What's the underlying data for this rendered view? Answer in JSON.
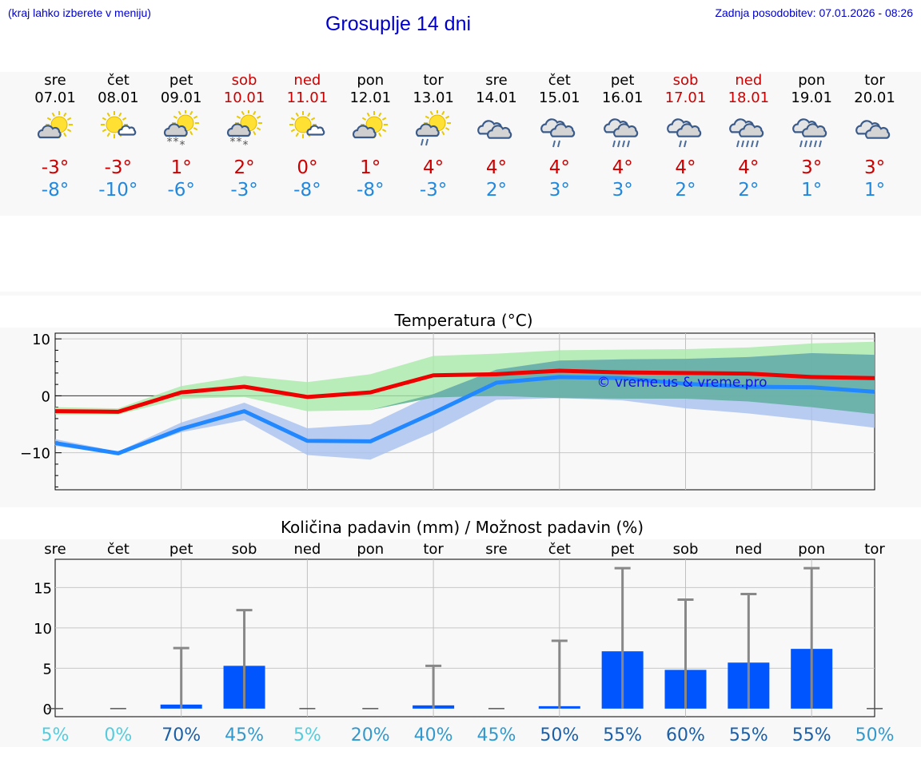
{
  "header": {
    "hint": "(kraj lahko izberete v meniju)",
    "title": "Grosuplje 14 dni",
    "updated": "Zadnja posodobitev: 07.01.2026 - 08:26"
  },
  "colors": {
    "link_blue": "#0000cc",
    "max_red": "#cc0000",
    "min_blue": "#2288dd",
    "bar_blue": "#0055ff"
  },
  "forecast": [
    {
      "day": "sre",
      "date": "07.01",
      "max": "-3°",
      "min": "-8°",
      "icon": "partly-cloudy-icon",
      "weekend": false
    },
    {
      "day": "čet",
      "date": "08.01",
      "max": "-3°",
      "min": "-10°",
      "icon": "mostly-sunny-icon",
      "weekend": false
    },
    {
      "day": "pet",
      "date": "09.01",
      "max": "1°",
      "min": "-6°",
      "icon": "sun-cloud-snow-icon",
      "weekend": false
    },
    {
      "day": "sob",
      "date": "10.01",
      "max": "2°",
      "min": "-3°",
      "icon": "sun-cloud-snow-icon",
      "weekend": true
    },
    {
      "day": "ned",
      "date": "11.01",
      "max": "0°",
      "min": "-8°",
      "icon": "mostly-sunny-icon",
      "weekend": true
    },
    {
      "day": "pon",
      "date": "12.01",
      "max": "1°",
      "min": "-8°",
      "icon": "partly-cloudy-icon",
      "weekend": false
    },
    {
      "day": "tor",
      "date": "13.01",
      "max": "4°",
      "min": "-3°",
      "icon": "sun-cloud-rain-icon",
      "weekend": false
    },
    {
      "day": "sre",
      "date": "14.01",
      "max": "4°",
      "min": "2°",
      "icon": "cloudy-icon",
      "weekend": false
    },
    {
      "day": "čet",
      "date": "15.01",
      "max": "4°",
      "min": "3°",
      "icon": "cloud-light-rain-icon",
      "weekend": false
    },
    {
      "day": "pet",
      "date": "16.01",
      "max": "4°",
      "min": "3°",
      "icon": "cloud-rain-icon",
      "weekend": false
    },
    {
      "day": "sob",
      "date": "17.01",
      "max": "4°",
      "min": "2°",
      "icon": "cloud-light-rain-icon",
      "weekend": true
    },
    {
      "day": "ned",
      "date": "18.01",
      "max": "4°",
      "min": "2°",
      "icon": "cloud-heavy-rain-icon",
      "weekend": true
    },
    {
      "day": "pon",
      "date": "19.01",
      "max": "3°",
      "min": "1°",
      "icon": "cloud-heavy-rain-icon",
      "weekend": false
    },
    {
      "day": "tor",
      "date": "20.01",
      "max": "3°",
      "min": "1°",
      "icon": "cloudy-icon",
      "weekend": false
    }
  ],
  "chart_data": [
    {
      "type": "line",
      "title": "Temperatura (°C)",
      "xlabel": "",
      "ylabel": "",
      "ylim": [
        -16.5,
        11
      ],
      "yticks": [
        10,
        0,
        -10
      ],
      "ytick_labels": [
        "10",
        "0",
        "−10"
      ],
      "watermark": "© vreme.us & vreme.pro",
      "x": [
        0,
        1,
        2,
        3,
        4,
        5,
        6,
        7,
        8,
        9,
        10,
        11,
        12,
        13
      ],
      "series": [
        {
          "name": "max",
          "color": "#ee0000",
          "values": [
            -2.7,
            -2.8,
            0.6,
            1.6,
            -0.2,
            0.6,
            3.6,
            3.8,
            4.4,
            4.1,
            4.0,
            3.9,
            3.3,
            3.1
          ]
        },
        {
          "name": "min",
          "color": "#2288ff",
          "values": [
            -8.3,
            -10.1,
            -5.8,
            -2.7,
            -7.9,
            -8.0,
            -3.0,
            2.3,
            3.3,
            3.1,
            2.1,
            1.6,
            1.5,
            0.7
          ]
        }
      ],
      "bands": [
        {
          "name": "max range",
          "color": "#a8e8a8",
          "low": [
            -3.3,
            -3.3,
            -0.5,
            -0.2,
            -2.7,
            -2.5,
            -0.3,
            0.0,
            -0.4,
            -0.5,
            -0.5,
            -1.0,
            -2.0,
            -3.2
          ],
          "high": [
            -2.0,
            -2.2,
            1.7,
            3.5,
            2.4,
            3.8,
            7.0,
            7.4,
            8.0,
            8.1,
            8.2,
            8.5,
            9.2,
            9.5
          ]
        },
        {
          "name": "min range",
          "color": "#a8c0f0",
          "low": [
            -8.8,
            -10.3,
            -6.4,
            -4.3,
            -10.4,
            -11.2,
            -6.4,
            -0.7,
            -0.4,
            -0.8,
            -2.2,
            -3.1,
            -4.3,
            -5.6
          ],
          "high": [
            -7.6,
            -9.8,
            -4.7,
            -1.2,
            -5.7,
            -5.0,
            0.3,
            4.6,
            6.2,
            6.4,
            6.5,
            6.8,
            7.5,
            7.2
          ]
        }
      ]
    },
    {
      "type": "bar",
      "title": "Količina padavin (mm) / Možnost padavin (%)",
      "categories": [
        "sre",
        "čet",
        "pet",
        "sob",
        "ned",
        "pon",
        "tor",
        "sre",
        "čet",
        "pet",
        "sob",
        "ned",
        "pon",
        "tor"
      ],
      "ylim": [
        -1,
        18.5
      ],
      "yticks": [
        15,
        10,
        5,
        0
      ],
      "ytick_labels": [
        "15",
        "10",
        "5",
        "0"
      ],
      "values": [
        0.0,
        0.0,
        0.5,
        5.3,
        0.0,
        0.0,
        0.4,
        0.0,
        0.3,
        7.1,
        4.8,
        5.7,
        7.4,
        0.0
      ],
      "max_values": [
        0.0,
        0.0,
        7.5,
        12.2,
        0.0,
        0.0,
        5.3,
        0.0,
        8.4,
        17.4,
        13.5,
        14.2,
        17.4,
        0.0
      ],
      "probability": [
        "5%",
        "0%",
        "70%",
        "45%",
        "5%",
        "20%",
        "40%",
        "45%",
        "50%",
        "55%",
        "60%",
        "55%",
        "55%",
        "50%"
      ],
      "probability_colors": [
        "#55ccdd",
        "#55ccdd",
        "#1a5fa8",
        "#3399cc",
        "#55ccdd",
        "#3399cc",
        "#3399cc",
        "#3399cc",
        "#1a5fa8",
        "#1a5fa8",
        "#1a5fa8",
        "#1a5fa8",
        "#1a5fa8",
        "#3399cc"
      ]
    }
  ]
}
